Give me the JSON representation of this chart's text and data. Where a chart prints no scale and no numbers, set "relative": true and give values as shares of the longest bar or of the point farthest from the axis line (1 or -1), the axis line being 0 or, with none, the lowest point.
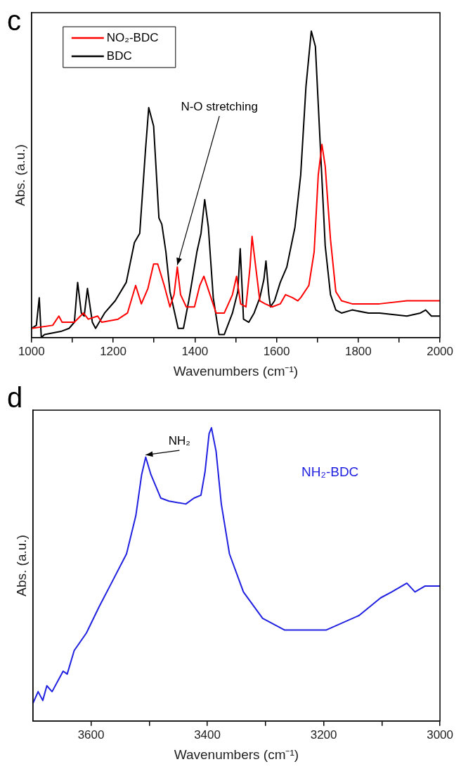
{
  "chart_data": [
    {
      "type": "line",
      "title": "c",
      "xlabel": "Wavenumbers (cm⁻¹)",
      "ylabel": "Abs. (a.u.)",
      "relative": true,
      "xlim": [
        1000,
        2000
      ],
      "xticks": [
        1000,
        {
          "value": 1100,
          "label": null
        },
        1200,
        {
          "value": 1300,
          "label": null
        },
        1400,
        {
          "value": 1500,
          "label": null
        },
        1600,
        {
          "value": 1700,
          "label": null
        },
        1800,
        {
          "value": 1900,
          "label": null
        },
        2000
      ],
      "grid": false,
      "legend": "top left",
      "marker": "none",
      "line_style": "solid",
      "annotations": [
        {
          "text": "N-O stretching",
          "x": 1357,
          "y": 0.23
        }
      ],
      "series": [
        {
          "name": "NO₂-BDC",
          "color": "#ff0000",
          "x": [
            1000,
            1052,
            1067,
            1075,
            1105,
            1127,
            1139,
            1162,
            1172,
            1212,
            1235,
            1255,
            1269,
            1285,
            1299,
            1309,
            1325,
            1339,
            1349,
            1357,
            1365,
            1379,
            1399,
            1412,
            1422,
            1432,
            1452,
            1472,
            1492,
            1502,
            1512,
            1525,
            1535,
            1540,
            1549,
            1559,
            1572,
            1589,
            1609,
            1622,
            1639,
            1652,
            1659,
            1679,
            1692,
            1702,
            1711,
            1719,
            1732,
            1745,
            1759,
            1785,
            1852,
            1919,
            1952,
            2000
          ],
          "values": [
            0.03,
            0.04,
            0.07,
            0.05,
            0.05,
            0.08,
            0.06,
            0.07,
            0.05,
            0.06,
            0.08,
            0.17,
            0.11,
            0.16,
            0.24,
            0.24,
            0.17,
            0.1,
            0.14,
            0.23,
            0.14,
            0.1,
            0.1,
            0.17,
            0.2,
            0.16,
            0.08,
            0.08,
            0.14,
            0.2,
            0.11,
            0.1,
            0.23,
            0.33,
            0.23,
            0.12,
            0.11,
            0.1,
            0.11,
            0.14,
            0.13,
            0.12,
            0.13,
            0.17,
            0.28,
            0.53,
            0.63,
            0.56,
            0.32,
            0.15,
            0.12,
            0.11,
            0.11,
            0.12,
            0.12,
            0.12
          ]
        },
        {
          "name": "BDC",
          "color": "#000000",
          "x": [
            1000,
            1012,
            1019,
            1024,
            1032,
            1072,
            1092,
            1105,
            1113,
            1122,
            1129,
            1137,
            1149,
            1157,
            1179,
            1205,
            1232,
            1252,
            1265,
            1279,
            1287,
            1299,
            1312,
            1319,
            1329,
            1339,
            1359,
            1372,
            1385,
            1405,
            1415,
            1424,
            1433,
            1445,
            1459,
            1472,
            1492,
            1505,
            1511,
            1516,
            1519,
            1532,
            1545,
            1559,
            1569,
            1574,
            1581,
            1585,
            1595,
            1609,
            1625,
            1645,
            1659,
            1672,
            1685,
            1695,
            1705,
            1719,
            1732,
            1745,
            1759,
            1785,
            1825,
            1852,
            1919,
            1952,
            1965,
            1979,
            2000
          ],
          "values": [
            0.03,
            0.04,
            0.13,
            0,
            0.01,
            0.02,
            0.03,
            0.05,
            0.18,
            0.08,
            0.07,
            0.16,
            0.05,
            0.03,
            0.08,
            0.12,
            0.18,
            0.31,
            0.34,
            0.61,
            0.75,
            0.69,
            0.39,
            0.37,
            0.28,
            0.15,
            0.03,
            0.03,
            0.12,
            0.28,
            0.34,
            0.45,
            0.36,
            0.13,
            0.01,
            0.01,
            0.08,
            0.15,
            0.29,
            0.15,
            0.06,
            0.05,
            0.08,
            0.13,
            0.19,
            0.25,
            0.14,
            0.1,
            0.12,
            0.18,
            0.23,
            0.36,
            0.53,
            0.82,
            1,
            0.95,
            0.68,
            0.3,
            0.14,
            0.09,
            0.08,
            0.09,
            0.08,
            0.08,
            0.07,
            0.08,
            0.09,
            0.07,
            0.07
          ]
        }
      ]
    },
    {
      "type": "line",
      "title": "d",
      "xlabel": "Wavenumbers (cm⁻¹)",
      "ylabel": "Abs. (a.u.)",
      "relative": true,
      "xlim": [
        3700,
        3000
      ],
      "xticks": [
        3600,
        {
          "value": 3500,
          "label": null
        },
        3400,
        {
          "value": 3300,
          "label": null
        },
        3200,
        {
          "value": 3100,
          "label": null
        },
        3000
      ],
      "grid": false,
      "marker": "none",
      "line_style": "solid",
      "annotations": [
        {
          "text": "NH₂",
          "x": 3506,
          "y": 0.9
        }
      ],
      "series": [
        {
          "name": "NH₂-BDC",
          "color": "#2020e0",
          "x": [
            3700,
            3691,
            3683,
            3676,
            3667,
            3648,
            3641,
            3629,
            3608,
            3586,
            3565,
            3539,
            3523,
            3513,
            3506,
            3497,
            3480,
            3466,
            3437,
            3423,
            3411,
            3404,
            3397,
            3393,
            3385,
            3376,
            3362,
            3338,
            3305,
            3267,
            3196,
            3139,
            3102,
            3083,
            3057,
            3043,
            3026,
            3000
          ],
          "values": [
            0.06,
            0.1,
            0.07,
            0.12,
            0.1,
            0.17,
            0.16,
            0.24,
            0.3,
            0.39,
            0.47,
            0.57,
            0.7,
            0.84,
            0.9,
            0.84,
            0.76,
            0.75,
            0.74,
            0.76,
            0.77,
            0.85,
            0.98,
            1,
            0.92,
            0.74,
            0.57,
            0.44,
            0.35,
            0.31,
            0.31,
            0.36,
            0.42,
            0.44,
            0.47,
            0.44,
            0.46,
            0.46
          ]
        }
      ]
    }
  ]
}
